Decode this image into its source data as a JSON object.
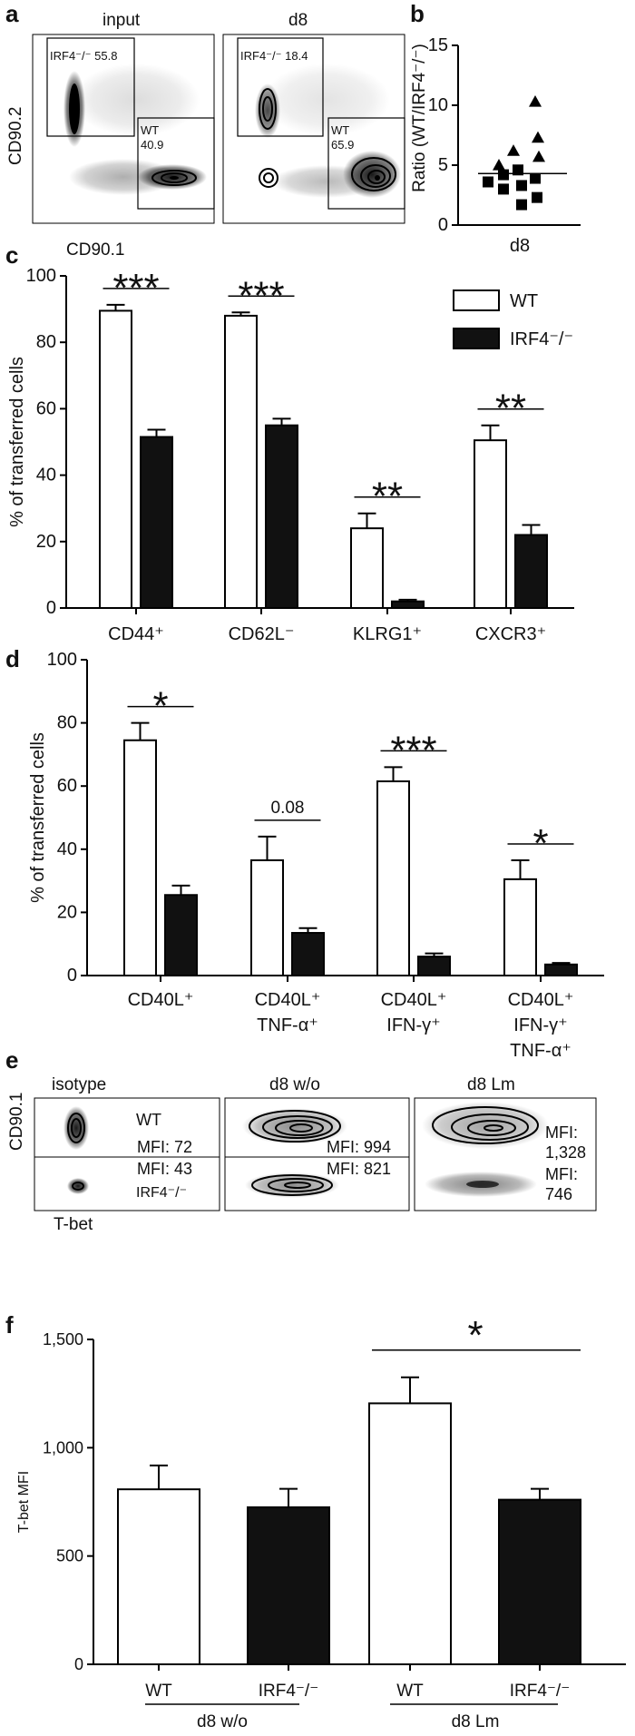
{
  "panel_labels": {
    "a": "a",
    "b": "b",
    "c": "c",
    "d": "d",
    "e": "e",
    "f": "f"
  },
  "panel_a": {
    "ylabel": "CD90.2",
    "xlabel": "CD90.1",
    "plots": [
      {
        "title": "input",
        "gate_top": "IRF4⁻/⁻ 55.8",
        "gate_wt_1": "WT",
        "gate_wt_2": "40.9"
      },
      {
        "title": "d8",
        "gate_top": "IRF4⁻/⁻ 18.4",
        "gate_wt_1": "WT",
        "gate_wt_2": "65.9"
      }
    ]
  },
  "panel_e": {
    "ylabel": "CD90.1",
    "xlabel": "T-bet",
    "columns": [
      {
        "title": "isotype",
        "top_text": "WT",
        "top_mfi": "MFI: 72",
        "bottom_mfi": "MFI: 43",
        "bottom_text": "IRF4⁻/⁻"
      },
      {
        "title": "d8 w/o",
        "top_mfi": "MFI: 994",
        "bottom_mfi": "MFI: 821"
      },
      {
        "title": "d8 Lm",
        "top_mfi_1": "MFI:",
        "top_mfi_2": "1,328",
        "bottom_mfi_1": "MFI:",
        "bottom_mfi_2": "746"
      }
    ]
  },
  "chart_data": [
    {
      "panel": "b",
      "type": "scatter",
      "ylabel": "Ratio (WT/IRF4⁻/⁻)",
      "xlabel": "d8",
      "ylim": [
        0,
        15
      ],
      "yticks": [
        0,
        5,
        10,
        15
      ],
      "mean": 4.3,
      "triangles": [
        10.3,
        7.3,
        6.2,
        5.7,
        5.0
      ],
      "squares": [
        4.6,
        4.2,
        3.9,
        3.6,
        3.3,
        3.0,
        2.3,
        1.7
      ]
    },
    {
      "panel": "c",
      "type": "bar",
      "ylabel": "% of transferred cells",
      "ylim": [
        0,
        100
      ],
      "yticks": [
        0,
        20,
        40,
        60,
        80,
        100
      ],
      "categories": [
        "CD44⁺",
        "CD62L⁻",
        "KLRG1⁺",
        "CXCR3⁺"
      ],
      "series": [
        {
          "name": "WT",
          "color": "#ffffff",
          "values": [
            89.5,
            88,
            24,
            50.5
          ],
          "errors": [
            1.8,
            1,
            4.5,
            4.5
          ]
        },
        {
          "name": "IRF4⁻/⁻",
          "color": "#111111",
          "values": [
            51.5,
            55,
            2,
            22
          ],
          "errors": [
            2.2,
            2,
            0.5,
            3
          ]
        }
      ],
      "significance": [
        "***",
        "***",
        "**",
        "**"
      ]
    },
    {
      "panel": "d",
      "type": "bar",
      "ylabel": "% of transferred cells",
      "ylim": [
        0,
        100
      ],
      "yticks": [
        0,
        20,
        40,
        60,
        80,
        100
      ],
      "categories": [
        [
          "CD40L⁺"
        ],
        [
          "CD40L⁺",
          "TNF-α⁺"
        ],
        [
          "CD40L⁺",
          "IFN-γ⁺"
        ],
        [
          "CD40L⁺",
          "IFN-γ⁺",
          "TNF-α⁺"
        ]
      ],
      "series": [
        {
          "name": "WT",
          "color": "#ffffff",
          "values": [
            74.5,
            36.5,
            61.5,
            30.5
          ],
          "errors": [
            5.5,
            7.5,
            4.5,
            6
          ]
        },
        {
          "name": "IRF4⁻/⁻",
          "color": "#111111",
          "values": [
            25.5,
            13.5,
            6,
            3.5
          ],
          "errors": [
            3,
            1.5,
            1,
            0.5
          ]
        }
      ],
      "significance": [
        "*",
        "0.08",
        "***",
        "*"
      ]
    },
    {
      "panel": "f",
      "type": "bar",
      "ylabel": "T-bet MFI",
      "ylim": [
        0,
        1500
      ],
      "yticks": [
        0,
        500,
        1000,
        1500
      ],
      "ytick_labels": [
        "0",
        "500",
        "1,000",
        "1,500"
      ],
      "categories": [
        "WT",
        "IRF4⁻/⁻",
        "WT",
        "IRF4⁻/⁻"
      ],
      "groups": [
        "d8 w/o",
        "d8 Lm"
      ],
      "values": [
        808,
        725,
        1205,
        760
      ],
      "errors": [
        110,
        85,
        120,
        50
      ],
      "colors": [
        "#ffffff",
        "#111111",
        "#ffffff",
        "#111111"
      ],
      "significance": "*"
    }
  ]
}
